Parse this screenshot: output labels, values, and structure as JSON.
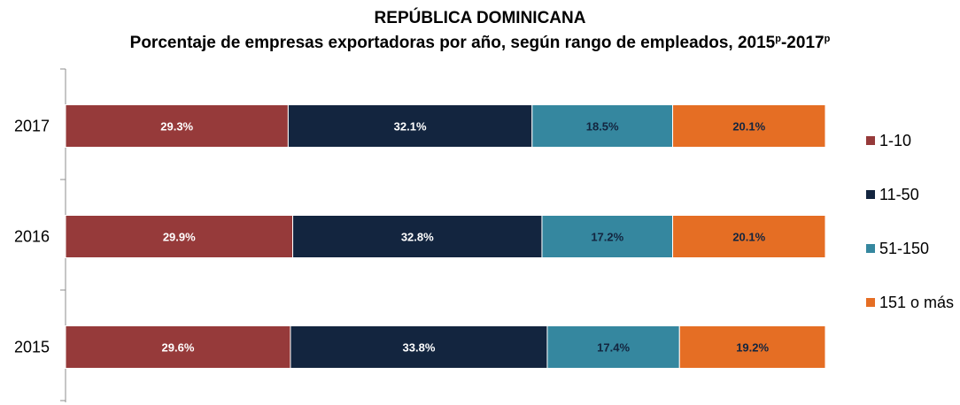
{
  "header": {
    "title": "REPÚBLICA DOMINICANA",
    "subtitle_text": "Porcentaje  de empresas exportadoras por año, según rango de empleados,  2015",
    "sup1": "p",
    "subtitle_mid": "-2017",
    "sup2": "p"
  },
  "chart_data": {
    "type": "bar",
    "orientation": "horizontal",
    "stacked": true,
    "percent": true,
    "categories": [
      "2017",
      "2016",
      "2015"
    ],
    "series": [
      {
        "name": "1-10",
        "color": "#963a3a",
        "values": [
          29.3,
          29.9,
          29.6
        ],
        "labels": [
          "29.3%",
          "29.9%",
          "29.6%"
        ],
        "label_color": "#ffffff"
      },
      {
        "name": "11-50",
        "color": "#13253f",
        "values": [
          32.1,
          32.8,
          33.8
        ],
        "labels": [
          "32.1%",
          "32.8%",
          "33.8%"
        ],
        "label_color": "#ffffff"
      },
      {
        "name": "51-150",
        "color": "#35879f",
        "values": [
          18.5,
          17.2,
          17.4
        ],
        "labels": [
          "18.5%",
          "17.2%",
          "17.4%"
        ],
        "label_color": "#13253f"
      },
      {
        "name": "151 o más",
        "color": "#e56e24",
        "values": [
          20.1,
          20.1,
          19.2
        ],
        "labels": [
          "20.1%",
          "20.1%",
          "19.2%"
        ],
        "label_color": "#13253f"
      }
    ],
    "xlim": [
      0,
      100
    ],
    "legend_position": "right",
    "grid": false
  }
}
